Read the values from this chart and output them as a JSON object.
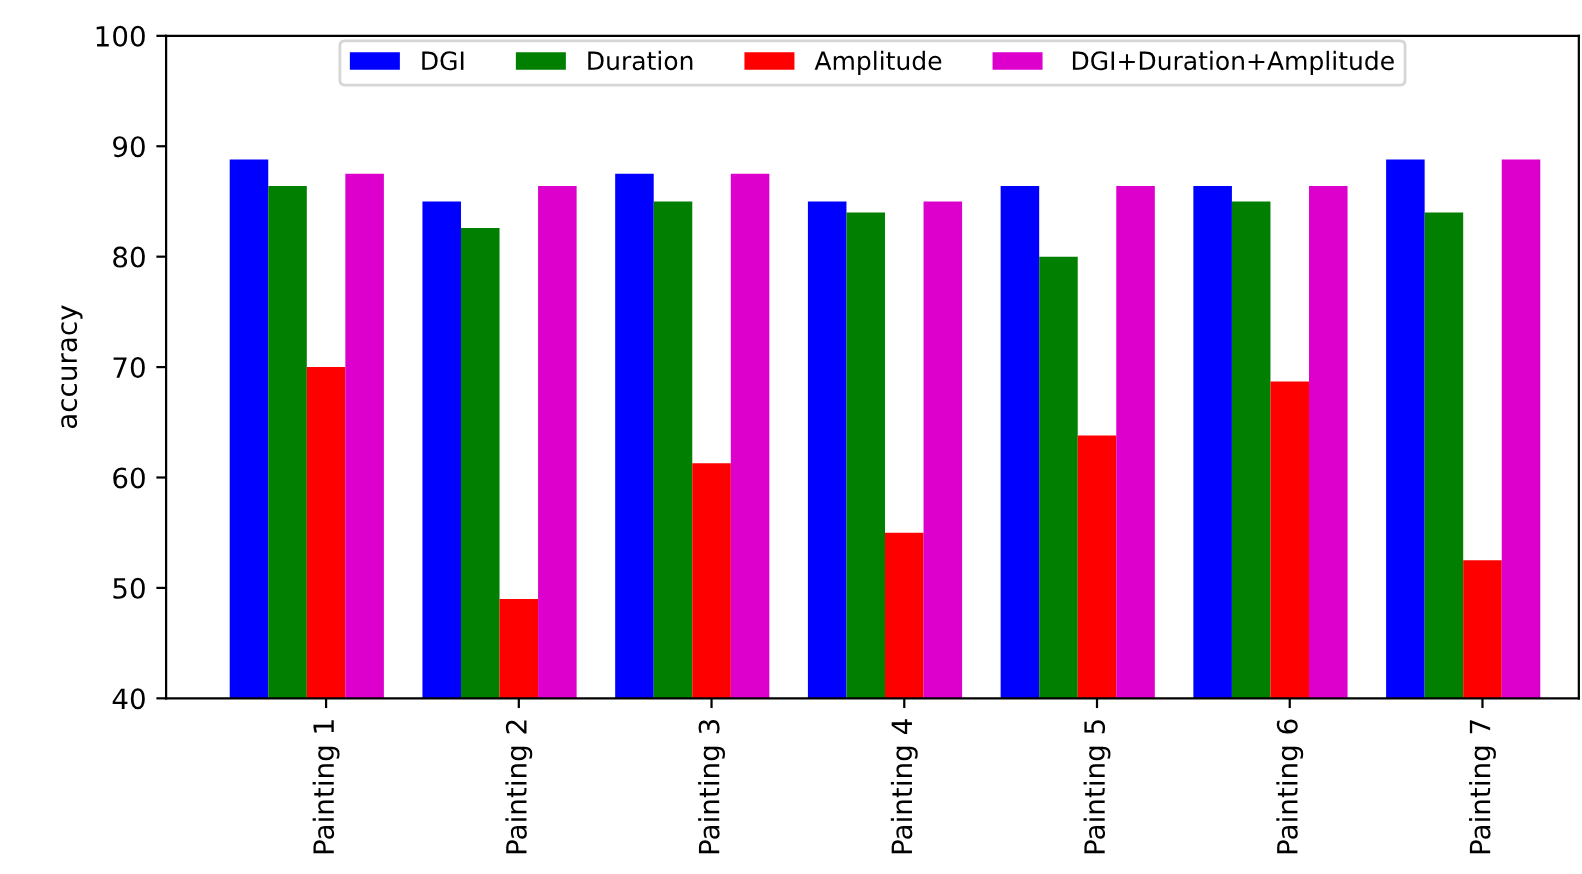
{
  "chart_data": {
    "type": "bar",
    "ylabel": "accuracy",
    "categories": [
      "Painting 1",
      "Painting 2",
      "Painting 3",
      "Painting 4",
      "Painting 5",
      "Painting 6",
      "Painting 7"
    ],
    "series": [
      {
        "name": "DGI",
        "color": "#0000ff",
        "values": [
          88.8,
          85.0,
          87.5,
          85.0,
          86.4,
          86.4,
          88.8
        ]
      },
      {
        "name": "Duration",
        "color": "#007f00",
        "values": [
          86.4,
          82.6,
          85.0,
          84.0,
          80.0,
          85.0,
          84.0
        ]
      },
      {
        "name": "Amplitude",
        "color": "#ff0000",
        "values": [
          70.0,
          49.0,
          61.3,
          55.0,
          63.8,
          68.7,
          52.5
        ]
      },
      {
        "name": " DGI+Duration+Amplitude",
        "color": "#dd00cc",
        "values": [
          87.5,
          86.4,
          87.5,
          85.0,
          86.4,
          86.4,
          88.8
        ]
      }
    ],
    "ylim": [
      40,
      100
    ],
    "yticks": [
      40,
      50,
      60,
      70,
      80,
      90,
      100
    ],
    "grid": false,
    "legend": "top"
  }
}
